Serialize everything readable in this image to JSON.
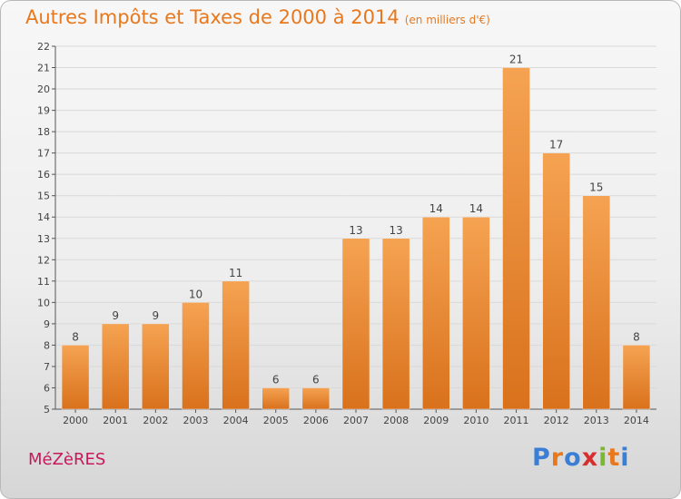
{
  "header": {
    "title": "Autres Impôts et Taxes de 2000 à 2014",
    "subtitle": "(en milliers d'€)"
  },
  "footer": {
    "town": "MéZèRES",
    "logo_letters": [
      "P",
      "r",
      "o",
      "x",
      "i",
      "t",
      "i"
    ],
    "logo_colors": [
      "#3a7fd5",
      "#e8781e",
      "#3a7fd5",
      "#d62f2f",
      "#7cb82f",
      "#e8781e",
      "#3a7fd5"
    ]
  },
  "colors": {
    "bar_light": "#f5a352",
    "bar_dark": "#d9711c",
    "label": "#444444",
    "axis": "#555555",
    "grid": "#d9d9d9"
  },
  "chart_data": {
    "type": "bar",
    "title": "Autres Impôts et Taxes de 2000 à 2014",
    "subtitle": "(en milliers d'€)",
    "xlabel": "",
    "ylabel": "",
    "categories": [
      "2000",
      "2001",
      "2002",
      "2003",
      "2004",
      "2005",
      "2006",
      "2007",
      "2008",
      "2009",
      "2010",
      "2011",
      "2012",
      "2013",
      "2014"
    ],
    "values": [
      8,
      9,
      9,
      10,
      11,
      6,
      6,
      13,
      13,
      14,
      14,
      21,
      17,
      15,
      8
    ],
    "ylim": [
      5,
      22
    ],
    "yticks": [
      5,
      6,
      7,
      8,
      9,
      10,
      11,
      12,
      13,
      14,
      15,
      16,
      17,
      18,
      19,
      20,
      21,
      22
    ],
    "grid": true,
    "legend": "none"
  }
}
